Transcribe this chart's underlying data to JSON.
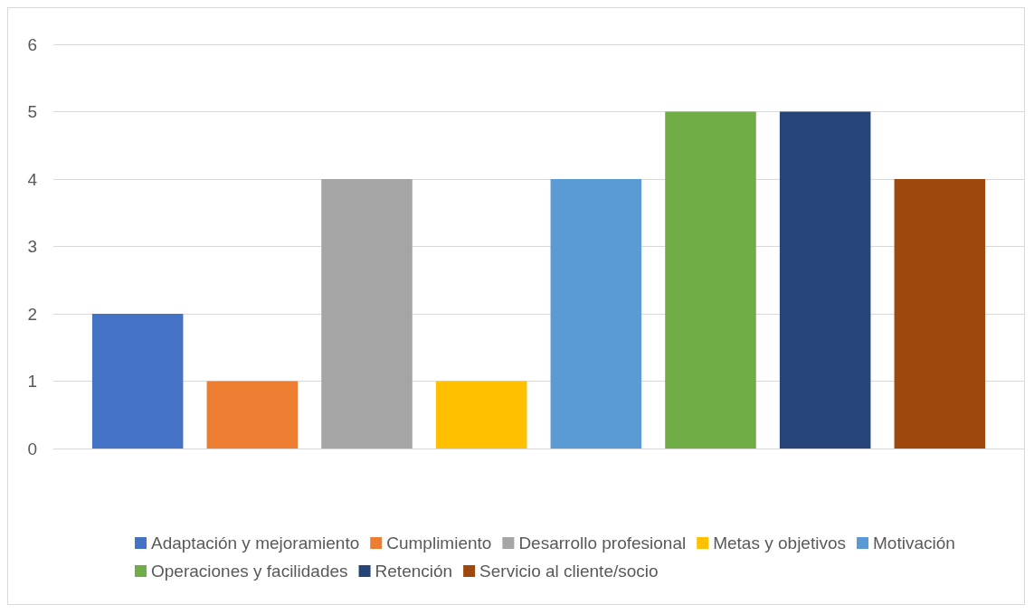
{
  "chart_data": {
    "type": "bar",
    "categories": [
      null
    ],
    "series": [
      {
        "name": "Adaptación y mejoramiento",
        "color": "#4472c4",
        "values": [
          2
        ]
      },
      {
        "name": "Cumplimiento",
        "color": "#ed7d31",
        "values": [
          1
        ]
      },
      {
        "name": "Desarrollo profesional",
        "color": "#a5a5a5",
        "values": [
          4
        ]
      },
      {
        "name": "Metas y objetivos",
        "color": "#ffc000",
        "values": [
          1
        ]
      },
      {
        "name": "Motivación",
        "color": "#5b9bd5",
        "values": [
          4
        ]
      },
      {
        "name": "Operaciones y facilidades",
        "color": "#70ad47",
        "values": [
          5
        ]
      },
      {
        "name": "Retención",
        "color": "#264478",
        "values": [
          5
        ]
      },
      {
        "name": "Servicio al cliente/socio",
        "color": "#9e480e",
        "values": [
          4
        ]
      }
    ],
    "ylim": [
      0,
      6
    ],
    "yticks": [
      0,
      1,
      2,
      3,
      4,
      5,
      6
    ],
    "grid": "y",
    "legend": "bottom"
  }
}
